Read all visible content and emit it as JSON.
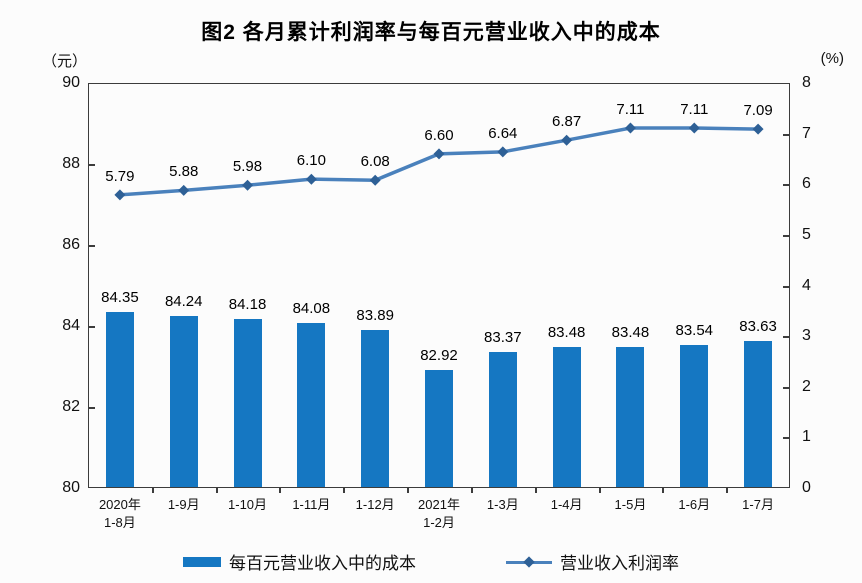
{
  "chart_data": {
    "type": "bar+line",
    "title": "图2 各月累计利润率与每百元营业收入中的成本",
    "left_axis": {
      "unit": "（元）",
      "min": 80,
      "max": 90,
      "ticks": [
        90,
        88,
        86,
        84,
        82,
        80
      ]
    },
    "right_axis": {
      "unit": "(%)",
      "min": 0,
      "max": 8,
      "ticks": [
        8,
        7,
        6,
        5,
        4,
        3,
        2,
        1,
        0
      ]
    },
    "categories": [
      [
        "2020年",
        "1-8月"
      ],
      [
        "1-9月"
      ],
      [
        "1-10月"
      ],
      [
        "1-11月"
      ],
      [
        "1-12月"
      ],
      [
        "2021年",
        "1-2月"
      ],
      [
        "1-3月"
      ],
      [
        "1-4月"
      ],
      [
        "1-5月"
      ],
      [
        "1-6月"
      ],
      [
        "1-7月"
      ]
    ],
    "series": [
      {
        "name": "每百元营业收入中的成本",
        "type": "bar",
        "axis": "left",
        "color": "#1577c2",
        "values": [
          84.35,
          84.24,
          84.18,
          84.08,
          83.89,
          82.92,
          83.37,
          83.48,
          83.48,
          83.54,
          83.63
        ],
        "value_labels": [
          "84.35",
          "84.24",
          "84.18",
          "84.08",
          "83.89",
          "82.92",
          "83.37",
          "83.48",
          "83.48",
          "83.54",
          "83.63"
        ]
      },
      {
        "name": "营业收入利润率",
        "type": "line",
        "axis": "right",
        "color": "#4a81bc",
        "marker_color": "#2e6096",
        "values": [
          5.79,
          5.88,
          5.98,
          6.1,
          6.08,
          6.6,
          6.64,
          6.87,
          7.11,
          7.11,
          7.09
        ],
        "value_labels": [
          "5.79",
          "5.88",
          "5.98",
          "6.10",
          "6.08",
          "6.60",
          "6.64",
          "6.87",
          "7.11",
          "7.11",
          "7.09"
        ]
      }
    ],
    "legend": [
      "每百元营业收入中的成本",
      "营业收入利润率"
    ],
    "grid": "off",
    "legend_position": "bottom"
  }
}
